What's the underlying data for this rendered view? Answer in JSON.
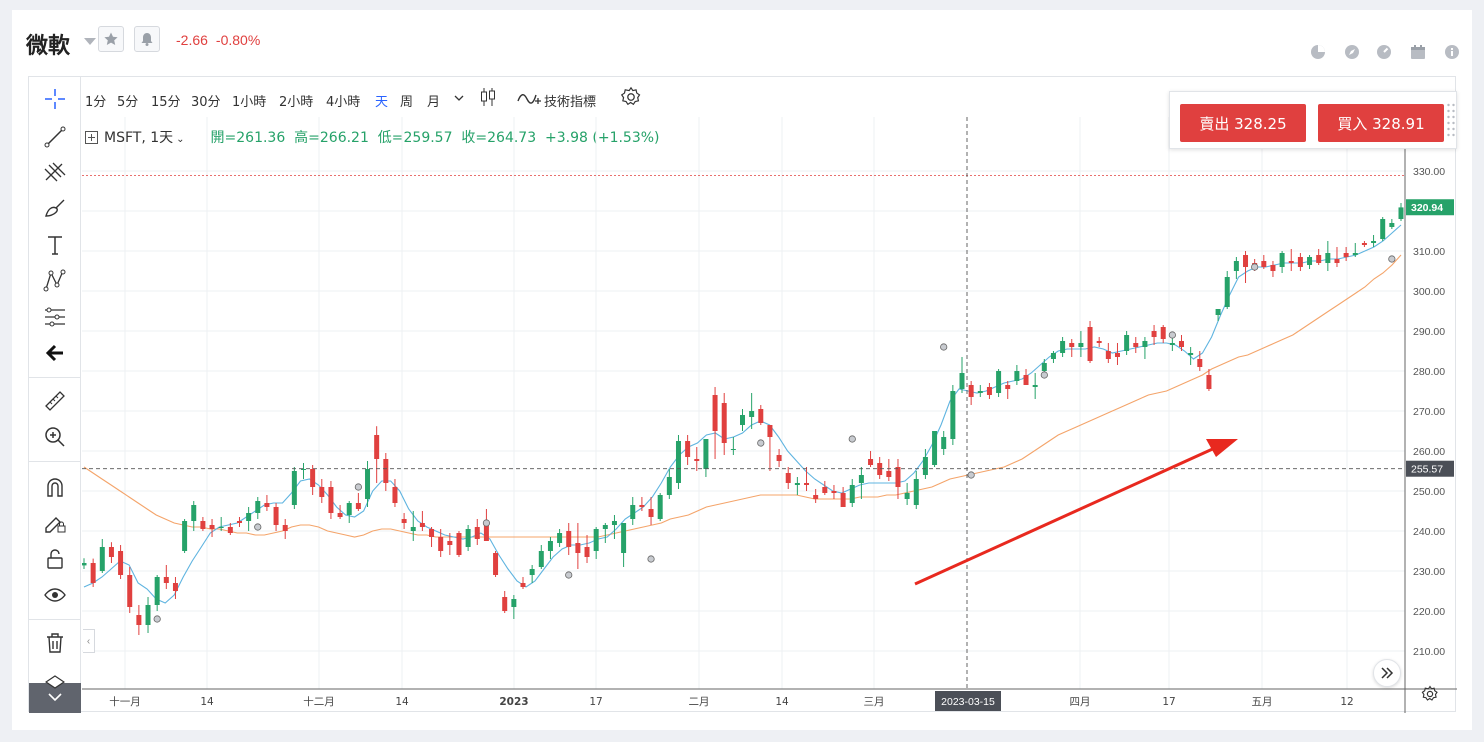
{
  "header": {
    "title": "微軟",
    "change_abs": "-2.66",
    "change_pct": "-0.80%"
  },
  "toolbar": {
    "timeframes": [
      "1分",
      "5分",
      "15分",
      "30分",
      "1小時",
      "2小時",
      "4小時",
      "天",
      "周",
      "月"
    ],
    "active_timeframe": "天",
    "indicators_label": "技術指標"
  },
  "legend": {
    "symbol": "MSFT, 1天",
    "open_label": "開=261.36",
    "high_label": "高=266.21",
    "low_label": "低=259.57",
    "close_label": "收=264.73",
    "change_label": "+3.98 (+1.53%)"
  },
  "trade": {
    "sell_label": "賣出 328.25",
    "buy_label": "買入 328.91"
  },
  "colors": {
    "up": "#26a269",
    "down": "#e0403f",
    "ma_fast": "#5fb4e0",
    "ma_slow": "#f4a46a",
    "arrow": "#e8291f"
  },
  "chart_data": {
    "type": "candlestick",
    "symbol": "MSFT",
    "yaxis_ticks": [
      "330.00",
      "320.00",
      "310.00",
      "300.00",
      "290.00",
      "280.00",
      "270.00",
      "260.00",
      "250.00",
      "240.00",
      "230.00",
      "220.00",
      "210.00"
    ],
    "ylim": [
      202,
      333
    ],
    "xaxis_ticks": [
      "十一月",
      "14",
      "十二月",
      "14",
      "2023",
      "17",
      "二月",
      "14",
      "三月",
      "四月",
      "17",
      "五月",
      "12"
    ],
    "crosshair_x_label": "2023-03-15",
    "crosshair_y_label": "255.57",
    "last_price_label": "320.94",
    "ask_line": 328.91,
    "candles": [
      [
        231.4,
        233.2,
        230.5,
        232.0
      ],
      [
        232.0,
        233.1,
        226.0,
        227.0
      ],
      [
        230.0,
        238.0,
        229.5,
        236.0
      ],
      [
        236.0,
        237.2,
        232.0,
        233.5
      ],
      [
        235.0,
        236.5,
        228.0,
        229.0
      ],
      [
        229.0,
        231.0,
        219.5,
        221.0
      ],
      [
        219.0,
        221.5,
        214.0,
        216.5
      ],
      [
        216.5,
        223.5,
        214.5,
        221.5
      ],
      [
        221.5,
        229.0,
        220.0,
        228.5
      ],
      [
        228.5,
        231.5,
        225.5,
        227.0
      ],
      [
        227.0,
        228.5,
        223.0,
        225.0
      ],
      [
        235.0,
        243.0,
        234.5,
        242.5
      ],
      [
        242.5,
        247.5,
        240.0,
        246.5
      ],
      [
        242.5,
        243.5,
        240.0,
        240.5
      ],
      [
        241.5,
        243.0,
        238.5,
        240.5
      ],
      [
        241.0,
        243.5,
        240.0,
        241.0
      ],
      [
        241.0,
        242.0,
        239.0,
        239.5
      ],
      [
        242.5,
        243.5,
        241.0,
        242.0
      ],
      [
        242.5,
        246.0,
        240.0,
        244.5
      ],
      [
        244.5,
        248.5,
        243.0,
        247.5
      ],
      [
        247.0,
        249.0,
        245.0,
        246.0
      ],
      [
        246.0,
        247.0,
        240.0,
        241.5
      ],
      [
        241.5,
        243.0,
        238.0,
        240.0
      ],
      [
        246.5,
        256.0,
        245.5,
        255.0
      ],
      [
        255.5,
        257.0,
        253.0,
        255.5
      ],
      [
        255.5,
        256.5,
        249.0,
        251.0
      ],
      [
        251.0,
        253.0,
        247.0,
        248.5
      ],
      [
        251.0,
        252.5,
        243.0,
        244.5
      ],
      [
        244.5,
        246.5,
        243.0,
        243.5
      ],
      [
        244.0,
        247.5,
        242.0,
        247.0
      ],
      [
        247.0,
        249.5,
        245.0,
        245.5
      ],
      [
        248.0,
        257.5,
        246.0,
        255.5
      ],
      [
        264.0,
        266.2,
        252.0,
        258.0
      ],
      [
        258.0,
        259.5,
        250.0,
        252.0
      ],
      [
        251.0,
        253.0,
        246.0,
        247.0
      ],
      [
        243.0,
        244.5,
        240.5,
        242.0
      ],
      [
        240.0,
        245.0,
        237.5,
        241.0
      ],
      [
        242.0,
        245.0,
        240.0,
        241.0
      ],
      [
        240.5,
        241.0,
        236.0,
        238.5
      ],
      [
        238.5,
        240.5,
        233.5,
        235.0
      ],
      [
        237.5,
        239.5,
        234.0,
        236.5
      ],
      [
        239.5,
        240.0,
        233.5,
        234.0
      ],
      [
        236.0,
        241.5,
        235.0,
        240.5
      ],
      [
        241.0,
        243.0,
        236.5,
        238.0
      ],
      [
        241.5,
        245.5,
        237.5,
        237.5
      ],
      [
        234.5,
        235.0,
        228.5,
        229.0
      ],
      [
        223.5,
        225.0,
        219.5,
        220.0
      ],
      [
        221.0,
        224.0,
        218.0,
        223.0
      ],
      [
        227.0,
        228.5,
        225.5,
        226.0
      ],
      [
        229.0,
        231.5,
        227.0,
        230.5
      ],
      [
        231.0,
        236.5,
        230.5,
        235.0
      ],
      [
        235.0,
        238.5,
        233.0,
        237.5
      ],
      [
        237.0,
        240.5,
        236.0,
        239.5
      ],
      [
        240.0,
        242.0,
        234.0,
        236.0
      ],
      [
        237.0,
        242.0,
        230.5,
        234.5
      ],
      [
        236.0,
        239.0,
        232.0,
        233.5
      ],
      [
        235.0,
        241.0,
        233.0,
        240.5
      ],
      [
        240.5,
        242.0,
        237.0,
        241.5
      ],
      [
        241.5,
        244.0,
        238.0,
        242.5
      ],
      [
        234.5,
        242.0,
        231.0,
        242.0
      ],
      [
        243.0,
        248.5,
        241.5,
        246.5
      ],
      [
        246.5,
        248.5,
        245.0,
        246.0
      ],
      [
        245.5,
        248.5,
        241.5,
        243.5
      ],
      [
        243.0,
        249.5,
        242.5,
        249.0
      ],
      [
        249.0,
        255.5,
        248.0,
        253.5
      ],
      [
        252.0,
        264.0,
        250.5,
        262.5
      ],
      [
        262.5,
        264.0,
        256.5,
        258.5
      ],
      [
        258.0,
        261.0,
        255.0,
        257.5
      ],
      [
        255.5,
        263.0,
        253.5,
        263.0
      ],
      [
        274.0,
        276.0,
        258.0,
        265.0
      ],
      [
        272.0,
        274.5,
        259.0,
        262.0
      ],
      [
        260.5,
        263.5,
        259.0,
        260.5
      ],
      [
        266.5,
        270.5,
        265.0,
        269.0
      ],
      [
        268.5,
        274.5,
        265.5,
        270.0
      ],
      [
        270.5,
        271.5,
        266.5,
        267.0
      ],
      [
        266.5,
        266.5,
        255.0,
        263.5
      ],
      [
        259.0,
        260.5,
        256.0,
        257.5
      ],
      [
        254.5,
        256.0,
        250.5,
        252.0
      ],
      [
        251.5,
        253.5,
        249.0,
        252.0
      ],
      [
        252.0,
        256.0,
        250.0,
        251.5
      ],
      [
        249.0,
        250.5,
        247.0,
        248.0
      ],
      [
        251.0,
        252.5,
        249.0,
        249.5
      ],
      [
        250.0,
        251.5,
        248.0,
        249.5
      ],
      [
        249.5,
        251.0,
        246.0,
        246.0
      ],
      [
        247.0,
        253.0,
        246.0,
        251.5
      ],
      [
        252.0,
        256.0,
        248.0,
        254.0
      ],
      [
        258.0,
        260.0,
        256.0,
        256.5
      ],
      [
        257.0,
        258.5,
        253.0,
        254.0
      ],
      [
        255.0,
        258.0,
        252.5,
        253.5
      ],
      [
        256.0,
        258.0,
        248.0,
        251.0
      ],
      [
        248.0,
        252.0,
        246.5,
        249.5
      ],
      [
        246.5,
        255.0,
        245.5,
        253.0
      ],
      [
        254.0,
        260.5,
        253.0,
        258.5
      ],
      [
        256.5,
        265.0,
        256.0,
        265.0
      ],
      [
        260.5,
        265.0,
        259.0,
        263.5
      ],
      [
        263.0,
        276.5,
        261.5,
        275.0
      ],
      [
        275.5,
        283.5,
        274.5,
        279.5
      ],
      [
        276.5,
        277.5,
        271.5,
        273.5
      ],
      [
        274.5,
        276.5,
        273.5,
        275.0
      ],
      [
        276.0,
        277.0,
        273.0,
        274.0
      ],
      [
        274.5,
        280.5,
        273.5,
        280.0
      ],
      [
        276.5,
        277.5,
        273.0,
        275.5
      ],
      [
        277.5,
        281.5,
        276.5,
        280.0
      ],
      [
        279.0,
        280.5,
        276.5,
        276.5
      ],
      [
        276.0,
        279.5,
        273.0,
        276.5
      ],
      [
        280.0,
        283.0,
        279.5,
        282.0
      ],
      [
        283.0,
        285.0,
        282.0,
        284.5
      ],
      [
        284.5,
        288.5,
        283.5,
        287.5
      ],
      [
        287.0,
        288.0,
        283.5,
        286.0
      ],
      [
        286.0,
        290.0,
        283.5,
        287.0
      ],
      [
        291.0,
        292.5,
        282.0,
        282.5
      ],
      [
        287.5,
        288.5,
        286.0,
        287.0
      ],
      [
        285.0,
        287.0,
        282.0,
        283.0
      ],
      [
        284.5,
        287.0,
        281.5,
        283.5
      ],
      [
        285.0,
        290.0,
        284.0,
        289.0
      ],
      [
        287.0,
        288.5,
        284.5,
        286.0
      ],
      [
        286.0,
        288.5,
        283.0,
        287.5
      ],
      [
        290.0,
        291.5,
        286.5,
        288.5
      ],
      [
        291.0,
        291.5,
        287.0,
        288.0
      ],
      [
        286.5,
        288.5,
        285.0,
        287.0
      ],
      [
        287.5,
        289.0,
        285.0,
        286.0
      ],
      [
        284.0,
        286.0,
        281.5,
        284.5
      ],
      [
        283.0,
        285.0,
        280.0,
        281.0
      ],
      [
        279.0,
        280.5,
        275.0,
        275.5
      ],
      [
        294.0,
        295.5,
        292.5,
        295.5
      ],
      [
        296.0,
        305.0,
        295.5,
        303.5
      ],
      [
        305.0,
        308.5,
        303.0,
        307.5
      ],
      [
        309.0,
        310.0,
        302.0,
        306.0
      ],
      [
        307.0,
        308.0,
        305.0,
        306.0
      ],
      [
        307.5,
        309.0,
        305.5,
        306.0
      ],
      [
        306.5,
        307.5,
        303.5,
        305.0
      ],
      [
        306.0,
        310.0,
        304.5,
        309.5
      ],
      [
        307.5,
        310.5,
        305.0,
        307.0
      ],
      [
        308.5,
        309.5,
        305.0,
        306.0
      ],
      [
        306.5,
        309.0,
        305.5,
        308.5
      ],
      [
        309.0,
        310.5,
        306.5,
        307.0
      ],
      [
        307.0,
        312.5,
        305.0,
        309.5
      ],
      [
        308.0,
        311.0,
        306.0,
        307.0
      ],
      [
        309.5,
        311.0,
        307.5,
        308.5
      ],
      [
        309.0,
        312.0,
        308.5,
        309.5
      ],
      [
        312.0,
        312.5,
        311.0,
        311.5
      ],
      [
        312.0,
        314.0,
        311.0,
        312.5
      ],
      [
        313.0,
        318.5,
        312.5,
        318.0
      ],
      [
        316.0,
        318.0,
        315.5,
        317.0
      ],
      [
        318.0,
        322.0,
        317.5,
        320.9
      ]
    ],
    "ma_fast": [
      226.0,
      227.0,
      228.5,
      230.5,
      232.5,
      231.5,
      227.0,
      225.5,
      223.0,
      222.0,
      224.0,
      228.5,
      232.5,
      236.0,
      239.5,
      241.0,
      241.5,
      242.0,
      243.5,
      245.0,
      246.5,
      247.0,
      247.0,
      249.5,
      252.5,
      253.0,
      251.5,
      249.0,
      246.0,
      244.0,
      243.5,
      245.0,
      250.0,
      252.5,
      252.5,
      250.0,
      245.5,
      242.5,
      241.0,
      240.0,
      239.0,
      238.5,
      238.0,
      238.5,
      239.5,
      238.0,
      234.0,
      230.5,
      227.5,
      226.0,
      227.5,
      230.5,
      233.5,
      235.5,
      236.5,
      236.5,
      237.0,
      238.0,
      238.5,
      240.5,
      243.0,
      244.5,
      246.0,
      248.5,
      252.0,
      256.0,
      259.0,
      261.0,
      262.0,
      264.0,
      264.5,
      263.0,
      263.5,
      264.5,
      266.5,
      267.5,
      266.5,
      263.5,
      260.0,
      257.5,
      255.0,
      253.0,
      251.5,
      250.0,
      249.5,
      250.5,
      251.5,
      252.0,
      252.0,
      252.0,
      252.0,
      252.5,
      254.5,
      257.5,
      261.5,
      266.5,
      272.5,
      275.5,
      275.0,
      274.5,
      275.0,
      276.0,
      277.0,
      277.5,
      278.0,
      279.5,
      281.5,
      283.5,
      285.0,
      285.5,
      285.5,
      285.5,
      286.0,
      285.5,
      284.5,
      285.0,
      285.5,
      286.0,
      286.5,
      287.0,
      287.0,
      286.5,
      285.0,
      283.0,
      284.5,
      288.5,
      294.0,
      299.0,
      303.5,
      305.0,
      306.0,
      306.0,
      306.5,
      307.0,
      307.0,
      307.0,
      307.5,
      307.5,
      308.0,
      308.0,
      308.5,
      309.0,
      310.0,
      311.0,
      312.5,
      314.5,
      316.5
    ],
    "ma_slow": [
      256.0,
      254.5,
      253.0,
      251.5,
      250.0,
      248.5,
      247.0,
      245.5,
      244.0,
      243.0,
      242.0,
      241.5,
      241.0,
      241.0,
      240.5,
      240.5,
      240.0,
      239.5,
      239.5,
      239.0,
      239.0,
      239.5,
      240.0,
      241.0,
      241.5,
      241.5,
      241.0,
      240.0,
      239.5,
      239.0,
      238.5,
      239.0,
      240.0,
      240.5,
      240.5,
      240.0,
      239.5,
      239.0,
      239.0,
      238.5,
      238.5,
      238.5,
      238.5,
      238.5,
      238.5,
      238.5,
      238.5,
      238.5,
      238.5,
      238.5,
      238.5,
      238.5,
      238.5,
      238.5,
      238.5,
      238.5,
      238.5,
      238.5,
      239.0,
      239.5,
      240.0,
      240.5,
      241.0,
      241.5,
      242.0,
      243.0,
      243.5,
      244.0,
      245.0,
      246.0,
      246.5,
      247.0,
      247.5,
      248.0,
      248.5,
      249.0,
      249.0,
      249.0,
      249.0,
      249.0,
      248.5,
      248.0,
      248.0,
      248.0,
      248.0,
      248.0,
      248.5,
      248.5,
      248.5,
      249.0,
      249.0,
      249.5,
      250.0,
      250.5,
      251.0,
      252.0,
      253.0,
      253.5,
      254.0,
      254.5,
      255.0,
      255.5,
      256.0,
      257.0,
      258.0,
      259.5,
      261.0,
      262.5,
      264.0,
      265.0,
      266.0,
      267.0,
      268.0,
      269.0,
      270.0,
      271.0,
      272.0,
      273.0,
      274.0,
      274.5,
      275.0,
      276.0,
      277.0,
      278.0,
      279.0,
      280.5,
      281.5,
      282.5,
      283.5,
      284.0,
      285.0,
      286.0,
      287.0,
      288.0,
      289.0,
      290.5,
      292.0,
      293.5,
      295.0,
      296.5,
      298.0,
      299.5,
      301.0,
      303.0,
      304.5,
      306.5,
      309.0
    ]
  }
}
